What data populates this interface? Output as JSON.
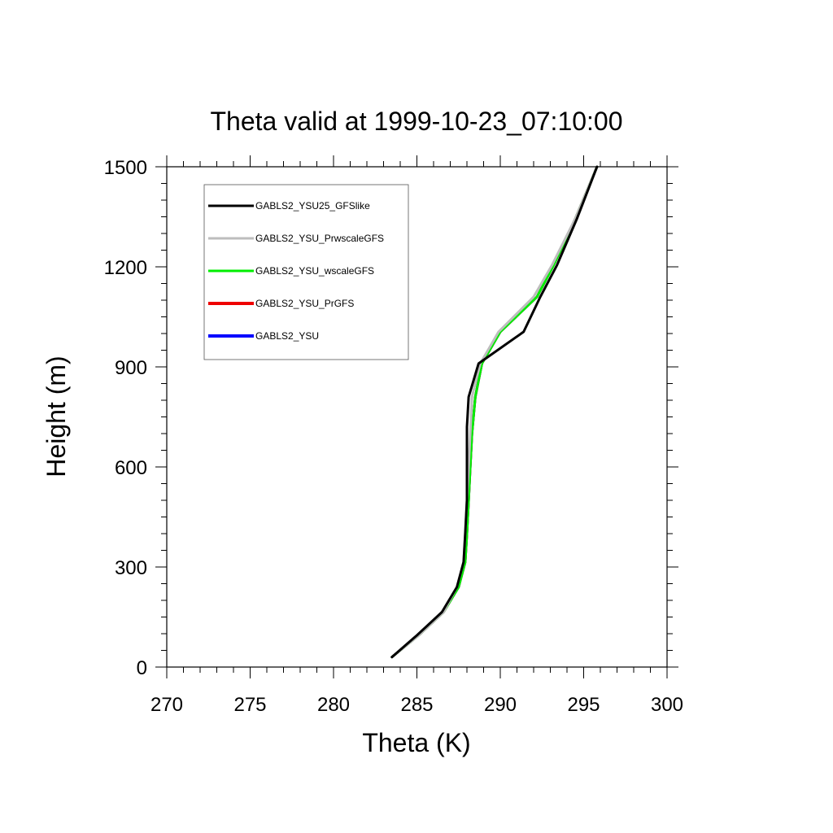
{
  "chart_data": {
    "type": "line",
    "title": "Theta valid at 1999-10-23_07:10:00",
    "xlabel": "Theta (K)",
    "ylabel": "Height (m)",
    "xlim": [
      270,
      300
    ],
    "ylim": [
      0,
      1500
    ],
    "xticks": [
      "270",
      "275",
      "280",
      "285",
      "290",
      "295",
      "300"
    ],
    "yticks": [
      "0",
      "300",
      "600",
      "900",
      "1200",
      "1500"
    ],
    "grid": false,
    "legend_position": "top-left",
    "series": [
      {
        "name": "GABLS2_YSU",
        "color": "#0000ff",
        "x": [
          283.5,
          285.1,
          286.6,
          287.5,
          287.9,
          288.0,
          288.1,
          288.2,
          288.3,
          288.5,
          288.9,
          290.0,
          292.2,
          293.2,
          294.5,
          295.8
        ],
        "y": [
          30,
          95,
          165,
          240,
          315,
          400,
          500,
          600,
          700,
          810,
          910,
          1005,
          1110,
          1205,
          1345,
          1500
        ]
      },
      {
        "name": "GABLS2_YSU_PrGFS",
        "color": "#ee0000",
        "x": [
          283.5,
          285.1,
          286.6,
          287.5,
          287.9,
          288.0,
          288.1,
          288.2,
          288.3,
          288.5,
          288.9,
          290.0,
          292.2,
          293.2,
          294.5,
          295.8
        ],
        "y": [
          30,
          95,
          165,
          240,
          315,
          400,
          500,
          600,
          700,
          810,
          910,
          1005,
          1110,
          1205,
          1345,
          1500
        ]
      },
      {
        "name": "GABLS2_YSU_wscaleGFS",
        "color": "#00ee00",
        "x": [
          283.5,
          285.1,
          286.6,
          287.5,
          287.9,
          288.0,
          288.1,
          288.2,
          288.3,
          288.5,
          288.9,
          290.0,
          292.2,
          293.2,
          294.5,
          295.8
        ],
        "y": [
          30,
          95,
          165,
          240,
          315,
          400,
          500,
          600,
          700,
          810,
          910,
          1005,
          1110,
          1205,
          1345,
          1500
        ]
      },
      {
        "name": "GABLS2_YSU_PrwscaleGFS",
        "color": "#bdbdbd",
        "x": [
          283.5,
          285.1,
          286.6,
          287.4,
          287.8,
          287.9,
          288.0,
          288.1,
          288.2,
          288.3,
          288.8,
          289.9,
          292.0,
          293.1,
          294.5,
          295.8
        ],
        "y": [
          30,
          95,
          165,
          240,
          315,
          400,
          500,
          600,
          700,
          810,
          910,
          1005,
          1110,
          1205,
          1345,
          1500
        ]
      },
      {
        "name": "GABLS2_YSU25_GFSlike",
        "color": "#000000",
        "x": [
          283.5,
          285.0,
          286.5,
          287.4,
          287.8,
          287.9,
          288.0,
          288.0,
          288.0,
          288.1,
          288.7,
          291.4,
          292.4,
          293.4,
          294.6,
          295.8
        ],
        "y": [
          30,
          95,
          165,
          240,
          315,
          400,
          500,
          600,
          720,
          810,
          910,
          1005,
          1110,
          1205,
          1345,
          1500
        ]
      }
    ]
  }
}
